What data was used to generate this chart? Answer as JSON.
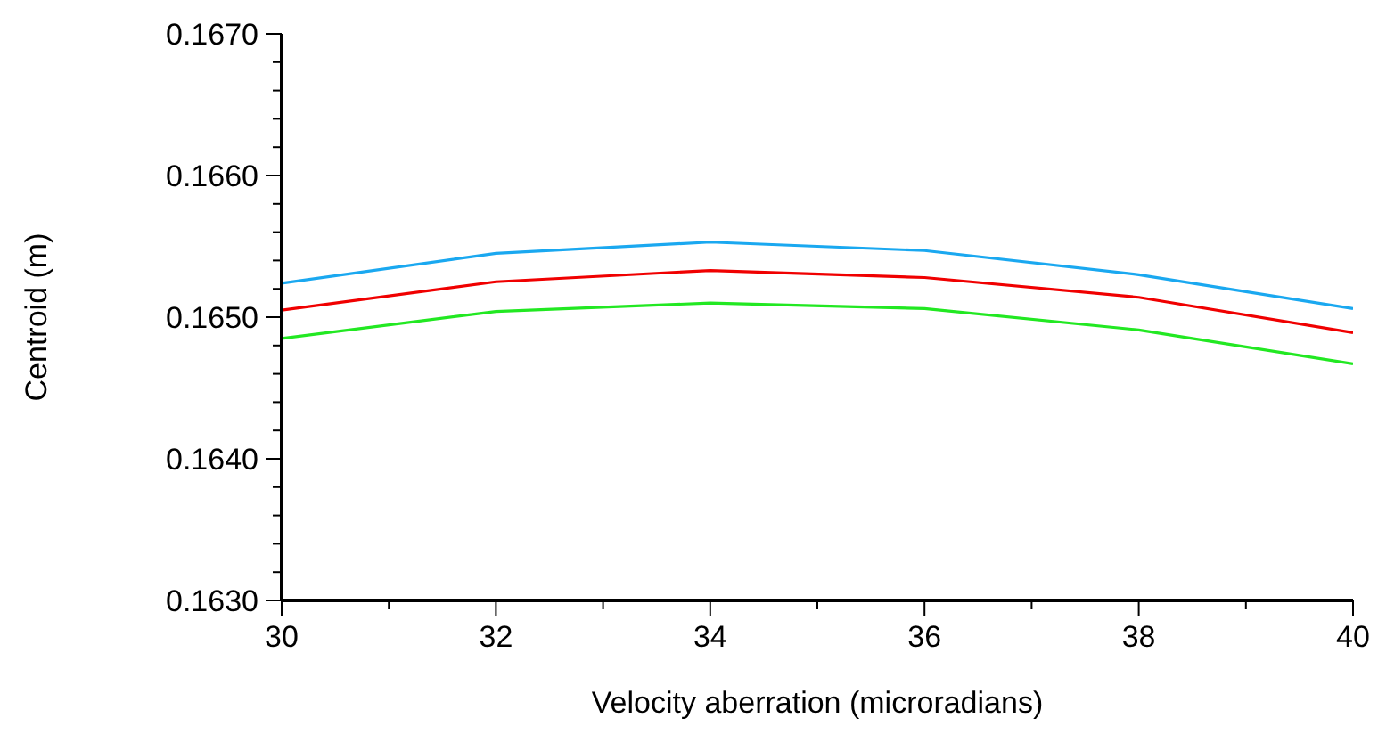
{
  "chart_data": {
    "type": "line",
    "xlabel": "Velocity aberration (microradians)",
    "ylabel": "Centroid (m)",
    "x": [
      30,
      32,
      34,
      36,
      38,
      40
    ],
    "series": [
      {
        "color": "#1aa8f0",
        "values": [
          0.16524,
          0.16545,
          0.16553,
          0.16547,
          0.1653,
          0.16506
        ]
      },
      {
        "color": "#f00000",
        "values": [
          0.16505,
          0.16525,
          0.16533,
          0.16528,
          0.16514,
          0.16489
        ]
      },
      {
        "color": "#22e822",
        "values": [
          0.16485,
          0.16504,
          0.1651,
          0.16506,
          0.16491,
          0.16467
        ]
      }
    ],
    "xlim": [
      30,
      40
    ],
    "xticks": [
      30,
      {
        "value": 31,
        "label": null
      },
      32,
      {
        "value": 33,
        "label": null
      },
      34,
      {
        "value": 35,
        "label": null
      },
      36,
      {
        "value": 37,
        "label": null
      },
      38,
      {
        "value": 39,
        "label": null
      },
      40
    ],
    "ylim": [
      0.163,
      0.167
    ],
    "yticks": [
      {
        "value": 0.163,
        "label": "0.1630"
      },
      {
        "value": 0.1632,
        "label": null
      },
      {
        "value": 0.1634,
        "label": null
      },
      {
        "value": 0.1636,
        "label": null
      },
      {
        "value": 0.1638,
        "label": null
      },
      {
        "value": 0.164,
        "label": "0.1640"
      },
      {
        "value": 0.1642,
        "label": null
      },
      {
        "value": 0.1644,
        "label": null
      },
      {
        "value": 0.1646,
        "label": null
      },
      {
        "value": 0.1648,
        "label": null
      },
      {
        "value": 0.165,
        "label": "0.1650"
      },
      {
        "value": 0.1652,
        "label": null
      },
      {
        "value": 0.1654,
        "label": null
      },
      {
        "value": 0.1656,
        "label": null
      },
      {
        "value": 0.1658,
        "label": null
      },
      {
        "value": 0.166,
        "label": "0.1660"
      },
      {
        "value": 0.1662,
        "label": null
      },
      {
        "value": 0.1664,
        "label": null
      },
      {
        "value": 0.1666,
        "label": null
      },
      {
        "value": 0.1668,
        "label": null
      },
      {
        "value": 0.167,
        "label": "0.1670"
      }
    ],
    "grid": false,
    "legend": false,
    "marker": "none",
    "line_style": "solid"
  }
}
